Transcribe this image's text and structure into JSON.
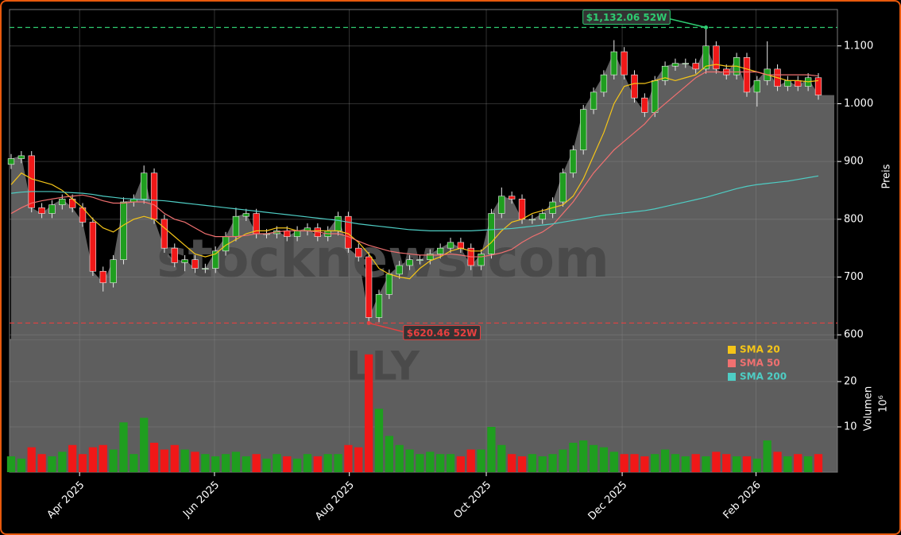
{
  "chart_data": [
    {
      "type": "candlestick",
      "watermark": "stocknews.com",
      "ylabel": "Preis",
      "up_color": "#1f9e1f",
      "down_color": "#f01818",
      "area_color": "#5e5e5e",
      "grid": true,
      "ylim": [
        592,
        1163
      ],
      "yticks": [
        600,
        700,
        800,
        900,
        {
          "value": 1000,
          "label": "1.000"
        },
        {
          "value": 1100,
          "label": "1.100"
        }
      ],
      "open": [
        895,
        905,
        910,
        820,
        810,
        825,
        835,
        820,
        795,
        710,
        690,
        730,
        830,
        835,
        880,
        800,
        750,
        725,
        730,
        715,
        715,
        745,
        770,
        805,
        810,
        775,
        775,
        780,
        770,
        780,
        785,
        770,
        780,
        805,
        750,
        735,
        630,
        670,
        705,
        720,
        730,
        730,
        740,
        750,
        760,
        750,
        720,
        740,
        810,
        840,
        835,
        800,
        800,
        810,
        830,
        880,
        920,
        990,
        1020,
        1050,
        1090,
        1050,
        1010,
        985,
        1040,
        1065,
        1070,
        1070,
        1060,
        1100,
        1060,
        1050,
        1080,
        1020,
        1040,
        1060,
        1030,
        1040,
        1030,
        1045
      ],
      "high": [
        913,
        918,
        918,
        828,
        833,
        843,
        843,
        828,
        803,
        718,
        738,
        838,
        843,
        893,
        888,
        808,
        758,
        738,
        738,
        723,
        753,
        778,
        820,
        818,
        818,
        783,
        788,
        788,
        788,
        793,
        793,
        788,
        813,
        813,
        758,
        743,
        678,
        713,
        728,
        738,
        738,
        748,
        758,
        768,
        768,
        758,
        748,
        818,
        855,
        848,
        843,
        808,
        818,
        838,
        888,
        928,
        998,
        1028,
        1058,
        1110,
        1098,
        1058,
        1018,
        1048,
        1073,
        1078,
        1078,
        1078,
        1132.06,
        1108,
        1068,
        1088,
        1088,
        1048,
        1108,
        1068,
        1048,
        1048,
        1053,
        1053
      ],
      "low": [
        887,
        897,
        812,
        802,
        802,
        817,
        812,
        787,
        702,
        675,
        682,
        722,
        822,
        827,
        792,
        742,
        717,
        710,
        707,
        707,
        707,
        737,
        762,
        797,
        767,
        767,
        767,
        762,
        762,
        772,
        762,
        762,
        772,
        742,
        727,
        620.46,
        622,
        662,
        697,
        712,
        722,
        722,
        732,
        742,
        742,
        712,
        712,
        732,
        802,
        827,
        792,
        792,
        792,
        802,
        822,
        872,
        912,
        982,
        1012,
        1042,
        1042,
        1002,
        977,
        977,
        1032,
        1057,
        1062,
        1052,
        1052,
        1052,
        1042,
        1042,
        1012,
        995,
        1032,
        1022,
        1022,
        1022,
        1022,
        1007
      ],
      "close": [
        905,
        910,
        820,
        810,
        825,
        835,
        820,
        795,
        710,
        690,
        730,
        830,
        835,
        880,
        800,
        750,
        725,
        730,
        715,
        715,
        745,
        770,
        805,
        810,
        775,
        775,
        780,
        770,
        780,
        785,
        770,
        780,
        805,
        750,
        735,
        630,
        670,
        705,
        720,
        730,
        730,
        740,
        750,
        760,
        750,
        720,
        740,
        810,
        840,
        835,
        800,
        800,
        810,
        830,
        880,
        920,
        990,
        1020,
        1050,
        1090,
        1050,
        1010,
        985,
        1040,
        1065,
        1070,
        1070,
        1060,
        1100,
        1060,
        1050,
        1080,
        1020,
        1040,
        1060,
        1030,
        1040,
        1030,
        1045,
        1015
      ],
      "series": [
        {
          "name": "SMA 20",
          "color": "#f5c518",
          "values": [
            860,
            880,
            870,
            865,
            860,
            850,
            835,
            820,
            800,
            785,
            778,
            790,
            800,
            805,
            800,
            785,
            770,
            755,
            740,
            735,
            740,
            755,
            765,
            775,
            780,
            780,
            785,
            785,
            780,
            780,
            780,
            780,
            780,
            775,
            760,
            740,
            715,
            705,
            700,
            697,
            715,
            728,
            735,
            745,
            750,
            745,
            745,
            760,
            780,
            795,
            800,
            810,
            815,
            820,
            825,
            840,
            870,
            910,
            950,
            1000,
            1030,
            1035,
            1035,
            1040,
            1045,
            1040,
            1045,
            1050,
            1065,
            1068,
            1065,
            1065,
            1060,
            1055,
            1050,
            1045,
            1040,
            1040,
            1038,
            1040
          ]
        },
        {
          "name": "SMA 50",
          "color": "#f07070",
          "values": [
            810,
            820,
            828,
            832,
            835,
            838,
            840,
            842,
            838,
            832,
            828,
            828,
            830,
            830,
            825,
            810,
            800,
            795,
            785,
            775,
            770,
            770,
            770,
            772,
            775,
            775,
            778,
            780,
            780,
            780,
            778,
            775,
            775,
            770,
            762,
            755,
            750,
            745,
            742,
            740,
            738,
            738,
            738,
            740,
            738,
            735,
            735,
            738,
            742,
            748,
            760,
            770,
            778,
            790,
            810,
            830,
            855,
            880,
            900,
            920,
            935,
            950,
            965,
            985,
            1000,
            1015,
            1030,
            1045,
            1055,
            1055,
            1055,
            1055,
            1055,
            1055,
            1050,
            1050,
            1050,
            1050,
            1050,
            1048
          ]
        },
        {
          "name": "SMA 200",
          "color": "#4ecdc4",
          "values": [
            845,
            847,
            848,
            848,
            848,
            847,
            846,
            845,
            843,
            840,
            838,
            836,
            835,
            834,
            833,
            832,
            830,
            828,
            826,
            824,
            822,
            820,
            818,
            816,
            814,
            812,
            810,
            808,
            806,
            804,
            802,
            800,
            798,
            795,
            792,
            790,
            788,
            786,
            784,
            782,
            781,
            780,
            780,
            780,
            780,
            780,
            781,
            782,
            783,
            784,
            786,
            788,
            790,
            792,
            795,
            798,
            801,
            804,
            807,
            809,
            811,
            813,
            815,
            818,
            822,
            826,
            830,
            834,
            838,
            843,
            848,
            853,
            857,
            860,
            862,
            864,
            866,
            869,
            872,
            875
          ]
        }
      ],
      "annotations": [
        {
          "label": "$1,132.06 52W",
          "value": 1132.06,
          "x": 68,
          "color": "#2ecc71"
        },
        {
          "label": "$620.46 52W",
          "value": 620.46,
          "x": 35,
          "color": "#e84040"
        }
      ]
    },
    {
      "type": "bar",
      "watermark": "LLY",
      "ylabel": "Volumen",
      "exponent": "10⁶",
      "legend": "upper right",
      "grid": true,
      "ylim": [
        0,
        29.3
      ],
      "yticks": [
        10,
        20
      ],
      "xticks": [
        {
          "value": 6.7,
          "label": "Apr 2025"
        },
        {
          "value": 19.9,
          "label": "Jun 2025"
        },
        {
          "value": 33.1,
          "label": "Aug 2025"
        },
        {
          "value": 46.5,
          "label": "Oct 2025"
        },
        {
          "value": 59.8,
          "label": "Dec 2025"
        },
        {
          "value": 72.9,
          "label": "Feb 2026"
        }
      ],
      "values": [
        3.5,
        3,
        5.5,
        4,
        3.5,
        4.5,
        6,
        4,
        5.5,
        6,
        5,
        11,
        4,
        12,
        6.5,
        5,
        6,
        5,
        4.5,
        4,
        3.5,
        4,
        4.5,
        3.5,
        4,
        3,
        4,
        3.5,
        3,
        4,
        3.5,
        4,
        4,
        6,
        5.5,
        26,
        14,
        8,
        6,
        5,
        4,
        4.5,
        4,
        4,
        3.5,
        5,
        5,
        10,
        6,
        4,
        3.5,
        4,
        3.5,
        4,
        5,
        6.5,
        7,
        6,
        5.5,
        4.5,
        4,
        4,
        3.5,
        4,
        5,
        4,
        3.5,
        4,
        3.5,
        4.5,
        4,
        3.5,
        3.5,
        3,
        7,
        4.5,
        3.5,
        4,
        3.5,
        4
      ]
    }
  ]
}
